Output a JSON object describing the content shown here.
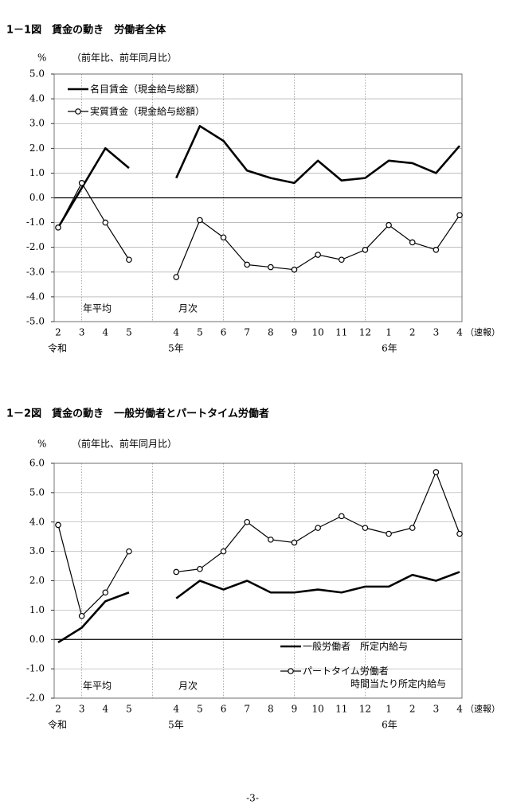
{
  "chart_data": [
    {
      "type": "line",
      "title": "1－1図　賃金の動き　労働者全体",
      "y_unit": "%",
      "subtitle": "（前年比、前年同月比）",
      "categories": [
        "2",
        "3",
        "4",
        "5",
        null,
        "4",
        "5",
        "6",
        "7",
        "8",
        "9",
        "10",
        "11",
        "12",
        "1",
        "2",
        "3",
        "4"
      ],
      "annotations": [
        "令和",
        "5年",
        "6年",
        "（速報）",
        "年平均",
        "月次"
      ],
      "ylim": [
        -5,
        5
      ],
      "yticks": [
        {
          "value": -5,
          "label": "-5.0"
        },
        {
          "value": -4,
          "label": "-4.0"
        },
        {
          "value": -3,
          "label": "-3.0"
        },
        {
          "value": -2,
          "label": "-2.0"
        },
        {
          "value": -1,
          "label": "-1.0"
        },
        {
          "value": 0,
          "label": "0.0"
        },
        {
          "value": 1,
          "label": "1.0"
        },
        {
          "value": 2,
          "label": "2.0"
        },
        {
          "value": 3,
          "label": "3.0"
        },
        {
          "value": 4,
          "label": "4.0"
        },
        {
          "value": 5,
          "label": "5.0"
        }
      ],
      "grid": true,
      "legend": "upper left",
      "series": [
        {
          "name": "名目賃金（現金給与総額）",
          "color": "#000000",
          "marker": "none",
          "values": [
            -1.2,
            0.4,
            2.0,
            1.2,
            null,
            0.8,
            2.9,
            2.3,
            1.1,
            0.8,
            0.6,
            1.5,
            0.7,
            0.8,
            1.5,
            1.4,
            1.0,
            2.1
          ]
        },
        {
          "name": "実質賃金（現金給与総額）",
          "color": "#000000",
          "marker": "circle",
          "values": [
            -1.2,
            0.6,
            -1.0,
            -2.5,
            null,
            -3.2,
            -0.9,
            -1.6,
            -2.7,
            -2.8,
            -2.9,
            -2.3,
            -2.5,
            -2.1,
            -1.1,
            -1.8,
            -2.1,
            -0.7
          ]
        }
      ]
    },
    {
      "type": "line",
      "title": "1－2図　賃金の動き　一般労働者とパートタイム労働者",
      "y_unit": "%",
      "subtitle": "（前年比、前年同月比）",
      "categories": [
        "2",
        "3",
        "4",
        "5",
        null,
        "4",
        "5",
        "6",
        "7",
        "8",
        "9",
        "10",
        "11",
        "12",
        "1",
        "2",
        "3",
        "4"
      ],
      "annotations": [
        "令和",
        "5年",
        "6年",
        "（速報）",
        "年平均",
        "月次"
      ],
      "ylim": [
        -2,
        6
      ],
      "yticks": [
        {
          "value": -2,
          "label": "-2.0"
        },
        {
          "value": -1,
          "label": "-1.0"
        },
        {
          "value": 0,
          "label": "0.0"
        },
        {
          "value": 1,
          "label": "1.0"
        },
        {
          "value": 2,
          "label": "2.0"
        },
        {
          "value": 3,
          "label": "3.0"
        },
        {
          "value": 4,
          "label": "4.0"
        },
        {
          "value": 5,
          "label": "5.0"
        },
        {
          "value": 6,
          "label": "6.0"
        }
      ],
      "grid": true,
      "legend": "lower right",
      "series": [
        {
          "name": "一般労働者　所定内給与",
          "color": "#000000",
          "marker": "none",
          "values": [
            -0.1,
            0.4,
            1.3,
            1.6,
            null,
            1.4,
            2.0,
            1.7,
            2.0,
            1.6,
            1.6,
            1.7,
            1.6,
            1.8,
            1.8,
            2.2,
            2.0,
            2.3
          ]
        },
        {
          "name": "パートタイム労働者\n　　　　　時間当たり所定内給与",
          "color": "#000000",
          "marker": "circle",
          "values": [
            3.9,
            0.8,
            1.6,
            3.0,
            null,
            2.3,
            2.4,
            3.0,
            4.0,
            3.4,
            3.3,
            3.8,
            4.2,
            3.8,
            3.6,
            3.8,
            5.7,
            3.6
          ]
        }
      ]
    }
  ],
  "page_number": "-3-"
}
